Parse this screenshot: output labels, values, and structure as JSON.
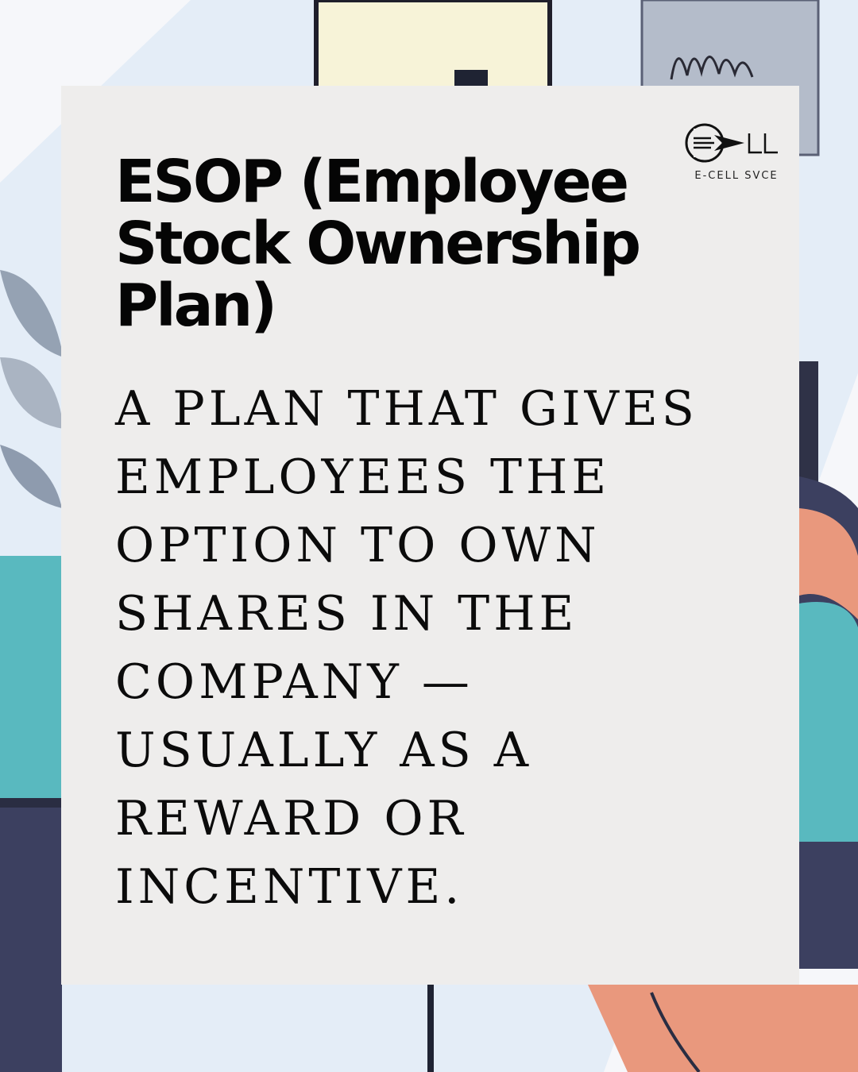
{
  "logo": {
    "name": "E-CELL SVCE",
    "icon": "e-cell-arrow-logo"
  },
  "title": " ESOP (Employee\nStock Ownership\nPlan)",
  "body": "A PLAN THAT GIVES\nEMPLOYEES THE\nOPTION TO OWN\nSHARES IN THE\nCOMPANY —\nUSUALLY AS A\nREWARD OR\nINCENTIVE.",
  "colors": {
    "card": "#eeedec",
    "text": "#050505",
    "teal": "#59b9bf",
    "navy": "#3c4060",
    "salmon": "#e9987d"
  }
}
